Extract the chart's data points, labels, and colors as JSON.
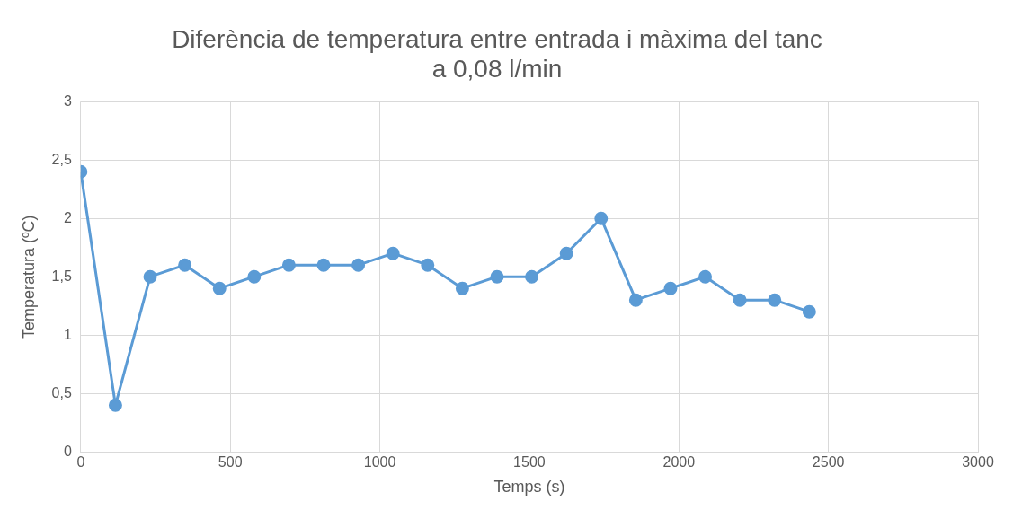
{
  "chart_data": {
    "type": "line",
    "title": "Diferència de temperatura entre entrada i màxima del tanc a 0,08 l/min",
    "xlabel": "Temps (s)",
    "ylabel": "Temperatura (ºC)",
    "x": [
      0,
      116,
      232,
      348,
      464,
      580,
      696,
      812,
      928,
      1044,
      1160,
      1276,
      1392,
      1508,
      1624,
      1740,
      1856,
      1972,
      2088,
      2204,
      2320,
      2436
    ],
    "series": [
      {
        "color": "#5b9bd5",
        "values": [
          2.4,
          0.4,
          1.5,
          1.6,
          1.4,
          1.5,
          1.6,
          1.6,
          1.6,
          1.7,
          1.6,
          1.4,
          1.5,
          1.5,
          1.7,
          2.0,
          1.3,
          1.4,
          1.5,
          1.3,
          1.3,
          1.2
        ]
      }
    ],
    "xlim": [
      0,
      3000
    ],
    "xticks": [
      0,
      500,
      1000,
      1500,
      2000,
      2500,
      3000
    ],
    "ylim": [
      0,
      3
    ],
    "yticks": [
      0,
      {
        "value": 0.5,
        "label": "0,5"
      },
      1,
      {
        "value": 1.5,
        "label": "1,5"
      },
      2,
      {
        "value": 2.5,
        "label": "2,5"
      },
      3
    ],
    "grid": true,
    "legend": false,
    "marker": "circle",
    "line_style": "solid"
  }
}
